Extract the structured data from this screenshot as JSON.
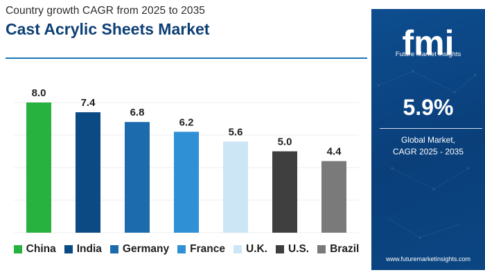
{
  "header": {
    "subtitle": "Country growth CAGR from 2025 to 2035",
    "title": "Cast Acrylic Sheets Market"
  },
  "side_panel": {
    "logo_text": "fmi",
    "logo_tagline": "Future Market Insights",
    "value": "5.9%",
    "caption_line1": "Global Market,",
    "caption_line2": "CAGR 2025 - 2035",
    "url": "www.futuremarketinsights.com"
  },
  "colors": {
    "title": "#0d3f74",
    "panel": "#0c4a8a",
    "rule": "#1a74b8"
  },
  "chart_data": {
    "type": "bar",
    "title": "Cast Acrylic Sheets Market",
    "subtitle": "Country growth CAGR from 2025 to 2035",
    "categories": [
      "China",
      "India",
      "Germany",
      "France",
      "U.K.",
      "U.S.",
      "Brazil"
    ],
    "values": [
      8.0,
      7.4,
      6.8,
      6.2,
      5.6,
      5.0,
      4.4
    ],
    "data_labels": [
      "8.0",
      "7.4",
      "6.8",
      "6.2",
      "5.6",
      "5.0",
      "4.4"
    ],
    "colors": [
      "#27b13f",
      "#0c4a84",
      "#1c6cad",
      "#2f90d6",
      "#cde6f5",
      "#3f3f3f",
      "#7a7a7a"
    ],
    "ylim": [
      0,
      8
    ],
    "grid": true,
    "legend_position": "bottom"
  }
}
